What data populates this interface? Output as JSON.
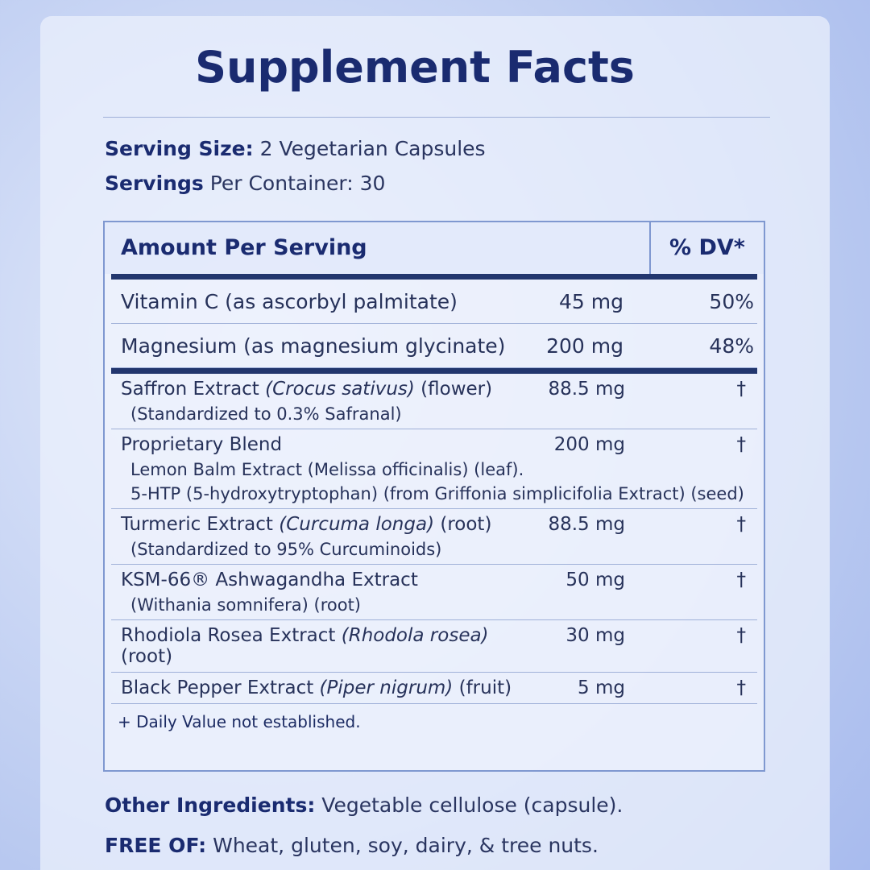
{
  "title": "Supplement Facts",
  "serving": [
    {
      "label": "Serving Size:",
      "text": "2 Vegetarian Capsules"
    },
    {
      "label": "Servings",
      "text": "Per Container: 30"
    }
  ],
  "table": {
    "header": {
      "amount": "Amount Per Serving",
      "dv": "% DV*"
    },
    "vitamins": [
      {
        "name": "Vitamin C",
        "source": "(as ascorbyl palmitate)",
        "amount": "45 mg",
        "dv": "50%"
      },
      {
        "name": "Magnesium",
        "source": "(as magnesium glycinate)",
        "amount": "200 mg",
        "dv": "48%"
      }
    ],
    "ingredients": [
      {
        "name": "Saffron Extract",
        "latin": "(Crocus sativus)",
        "part": "(flower)",
        "amount": "88.5 mg",
        "dv": "†",
        "sub": [
          "(Standardized to 0.3% Safranal)"
        ]
      },
      {
        "name": "Proprietary Blend",
        "amount": "200 mg",
        "dv": "†",
        "sub": [
          "Lemon Balm Extract (Melissa officinalis) (leaf).",
          "5-HTP (5-hydroxytryptophan) (from Griffonia simplicifolia Extract) (seed)"
        ]
      },
      {
        "name": "Turmeric Extract",
        "latin": "(Curcuma longa)",
        "part": "(root)",
        "amount": "88.5 mg",
        "dv": "†",
        "sub": [
          "(Standardized to 95% Curcuminoids)"
        ]
      },
      {
        "name": "KSM-66® Ashwagandha Extract",
        "amount": "50 mg",
        "dv": "†",
        "sub": [
          "(Withania somnifera) (root)"
        ]
      },
      {
        "name": "Rhodiola Rosea Extract",
        "latin": "(Rhodola rosea)",
        "part": "(root)",
        "amount": "30 mg",
        "dv": "†"
      },
      {
        "name": "Black Pepper Extract",
        "latin": "(Piper nigrum)",
        "part": "(fruit)",
        "amount": "5 mg",
        "dv": "†"
      }
    ],
    "footnote": "+ Daily Value not established."
  },
  "other": {
    "label": "Other Ingredients:",
    "text": "Vegetable cellulose (capsule)."
  },
  "free": {
    "label": "FREE OF:",
    "text": "Wheat, gluten, soy, dairy, & tree nuts."
  }
}
